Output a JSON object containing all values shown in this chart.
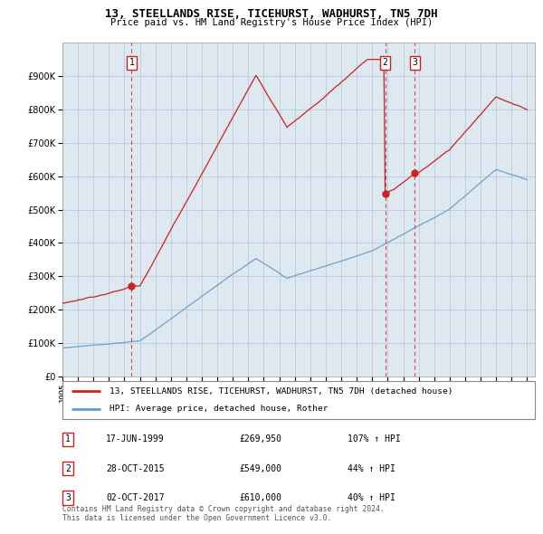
{
  "title": "13, STEELLANDS RISE, TICEHURST, WADHURST, TN5 7DH",
  "subtitle": "Price paid vs. HM Land Registry's House Price Index (HPI)",
  "sale_info": [
    {
      "num": "1",
      "date": "17-JUN-1999",
      "price": "£269,950",
      "hpi": "107% ↑ HPI",
      "year_float": 1999.46
    },
    {
      "num": "2",
      "date": "28-OCT-2015",
      "price": "£549,000",
      "hpi": "44% ↑ HPI",
      "year_float": 2015.83
    },
    {
      "num": "3",
      "date": "02-OCT-2017",
      "price": "£610,000",
      "hpi": "40% ↑ HPI",
      "year_float": 2017.75
    }
  ],
  "sale_prices_actual": [
    269950,
    549000,
    610000
  ],
  "legend_line1": "13, STEELLANDS RISE, TICEHURST, WADHURST, TN5 7DH (detached house)",
  "legend_line2": "HPI: Average price, detached house, Rother",
  "footer": "Contains HM Land Registry data © Crown copyright and database right 2024.\nThis data is licensed under the Open Government Licence v3.0.",
  "price_line_color": "#cc2222",
  "hpi_line_color": "#6699cc",
  "vline_color": "#cc2222",
  "chart_bg_color": "#dde8f0",
  "outer_bg_color": "#ffffff",
  "grid_color": "#bbccdd",
  "yticks": [
    0,
    100000,
    200000,
    300000,
    400000,
    500000,
    600000,
    700000,
    800000,
    900000
  ],
  "ylim": [
    0,
    1000000
  ],
  "xlim": [
    1995,
    2025.5
  ]
}
